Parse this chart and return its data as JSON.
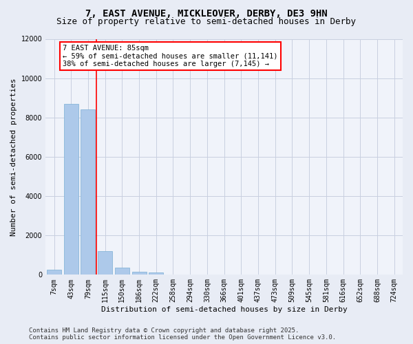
{
  "title": "7, EAST AVENUE, MICKLEOVER, DERBY, DE3 9HN",
  "subtitle": "Size of property relative to semi-detached houses in Derby",
  "xlabel": "Distribution of semi-detached houses by size in Derby",
  "ylabel": "Number of semi-detached properties",
  "categories": [
    "7sqm",
    "43sqm",
    "79sqm",
    "115sqm",
    "150sqm",
    "186sqm",
    "222sqm",
    "258sqm",
    "294sqm",
    "330sqm",
    "366sqm",
    "401sqm",
    "437sqm",
    "473sqm",
    "509sqm",
    "545sqm",
    "581sqm",
    "616sqm",
    "652sqm",
    "688sqm",
    "724sqm"
  ],
  "values": [
    250,
    8700,
    8400,
    1200,
    350,
    150,
    100,
    0,
    0,
    0,
    0,
    0,
    0,
    0,
    0,
    0,
    0,
    0,
    0,
    0,
    0
  ],
  "bar_color": "#adc9ea",
  "bar_edge_color": "#7aafd4",
  "red_line_x": 2.5,
  "annotation_title": "7 EAST AVENUE: 85sqm",
  "annotation_line1": "← 59% of semi-detached houses are smaller (11,141)",
  "annotation_line2": "38% of semi-detached houses are larger (7,145) →",
  "ylim": [
    0,
    12000
  ],
  "yticks": [
    0,
    2000,
    4000,
    6000,
    8000,
    10000,
    12000
  ],
  "footer1": "Contains HM Land Registry data © Crown copyright and database right 2025.",
  "footer2": "Contains public sector information licensed under the Open Government Licence v3.0.",
  "bg_color": "#e8ecf5",
  "plot_bg_color": "#f0f3fa",
  "grid_color": "#c8cfe0",
  "title_fontsize": 10,
  "subtitle_fontsize": 9,
  "axis_label_fontsize": 8,
  "tick_fontsize": 7,
  "annotation_fontsize": 7.5,
  "footer_fontsize": 6.5
}
